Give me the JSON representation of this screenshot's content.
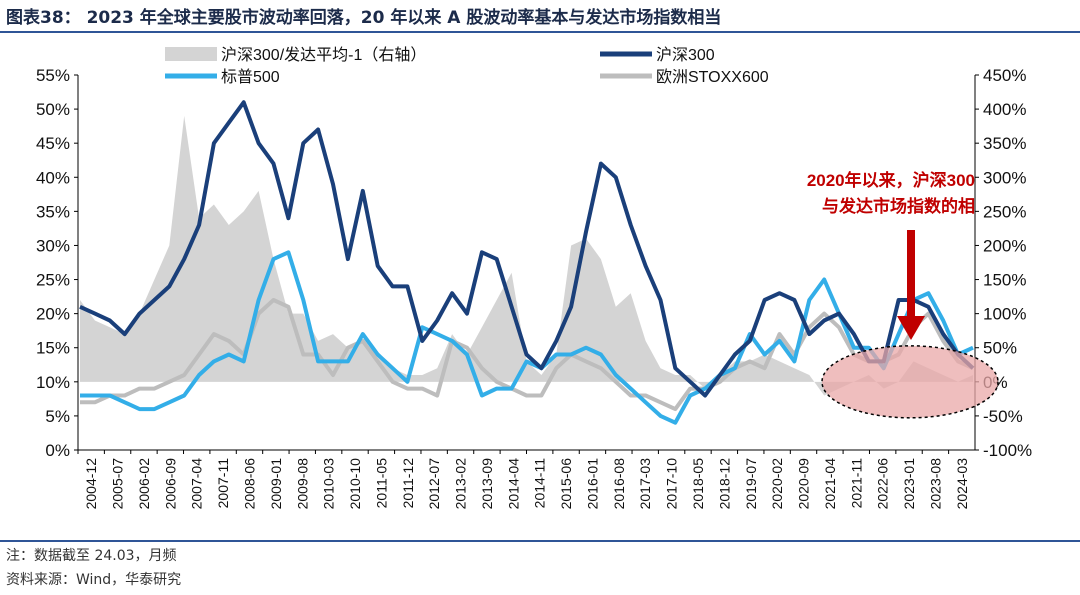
{
  "header": {
    "title": "图表38： 2023 年全球主要股市波动率回落，20 年以来 A 股波动率基本与发达市场指数相当"
  },
  "footer": {
    "note": "注：数据截至 24.03，月频",
    "source": "资料来源：Wind，华泰研究"
  },
  "colors": {
    "area": "#d4d4d4",
    "hs300": "#1a3f7a",
    "sp500": "#33aee8",
    "stoxx": "#bdbdbd",
    "ellipse": "#e9a8a8",
    "arrow": "#c00000",
    "accent_text": "#c00000"
  },
  "chart_data": {
    "type": "line",
    "x_labels": [
      "2004-12",
      "2005-07",
      "2006-02",
      "2006-09",
      "2007-04",
      "2007-11",
      "2008-06",
      "2009-01",
      "2009-08",
      "2010-03",
      "2010-10",
      "2011-05",
      "2011-12",
      "2012-07",
      "2013-02",
      "2013-09",
      "2014-04",
      "2014-11",
      "2015-06",
      "2016-01",
      "2016-08",
      "2017-03",
      "2017-10",
      "2018-05",
      "2018-12",
      "2019-07",
      "2020-02",
      "2020-09",
      "2021-04",
      "2021-11",
      "2022-06",
      "2023-01",
      "2023-08",
      "2024-03"
    ],
    "y_left": {
      "min": 0,
      "max": 55,
      "step": 5,
      "unit": "%",
      "tick_labels": [
        "0%",
        "5%",
        "10%",
        "15%",
        "20%",
        "25%",
        "30%",
        "35%",
        "40%",
        "45%",
        "50%",
        "55%"
      ]
    },
    "y_right": {
      "min": -100,
      "max": 450,
      "step": 50,
      "unit": "%",
      "tick_labels": [
        "-100%",
        "-50%",
        "0%",
        "50%",
        "100%",
        "150%",
        "200%",
        "250%",
        "300%",
        "350%",
        "400%",
        "450%"
      ]
    },
    "legend": [
      {
        "key": "ratio",
        "label": "沪深300/发达平均-1（右轴）"
      },
      {
        "key": "hs300",
        "label": "沪深300"
      },
      {
        "key": "sp500",
        "label": "标普500"
      },
      {
        "key": "stoxx",
        "label": "欧洲STOXX600"
      }
    ],
    "legend_placement": "top",
    "annotation": {
      "lines": [
        "2020年以来，沪深300",
        "与发达市场指数的相"
      ]
    },
    "series": [
      {
        "key": "hs300",
        "axis": "left",
        "values": [
          21,
          20,
          19,
          17,
          20,
          22,
          24,
          28,
          33,
          45,
          48,
          51,
          45,
          42,
          34,
          45,
          47,
          39,
          28,
          38,
          27,
          24,
          24,
          16,
          19,
          23,
          20,
          29,
          28,
          21,
          14,
          12,
          16,
          21,
          32,
          42,
          40,
          33,
          27,
          22,
          12,
          10,
          8,
          11,
          14,
          16,
          22,
          23,
          22,
          17,
          19,
          20,
          17,
          13,
          13,
          22,
          22,
          21,
          17,
          14,
          12
        ]
      },
      {
        "key": "sp500",
        "axis": "left",
        "values": [
          8,
          8,
          8,
          7,
          6,
          6,
          7,
          8,
          11,
          13,
          14,
          13,
          22,
          28,
          29,
          22,
          13,
          13,
          13,
          17,
          14,
          12,
          10,
          18,
          17,
          16,
          14,
          8,
          9,
          9,
          13,
          12,
          14,
          14,
          15,
          14,
          11,
          9,
          7,
          5,
          4,
          8,
          9,
          11,
          12,
          17,
          14,
          16,
          13,
          22,
          25,
          20,
          15,
          15,
          12,
          17,
          22,
          23,
          19,
          14,
          15
        ]
      },
      {
        "key": "stoxx",
        "axis": "left",
        "values": [
          7,
          7,
          8,
          8,
          9,
          9,
          10,
          11,
          14,
          17,
          16,
          14,
          20,
          22,
          21,
          14,
          14,
          11,
          15,
          16,
          13,
          10,
          9,
          9,
          8,
          16,
          15,
          12,
          10,
          9,
          8,
          8,
          12,
          14,
          13,
          12,
          10,
          8,
          8,
          7,
          6,
          9,
          9,
          10,
          12,
          13,
          12,
          17,
          14,
          18,
          20,
          18,
          14,
          13,
          13,
          14,
          18,
          20,
          16,
          13,
          12
        ]
      },
      {
        "key": "ratio",
        "axis": "right",
        "values": [
          120,
          90,
          80,
          70,
          100,
          150,
          200,
          390,
          240,
          260,
          230,
          250,
          280,
          180,
          100,
          100,
          60,
          70,
          50,
          60,
          40,
          20,
          10,
          10,
          20,
          70,
          40,
          80,
          120,
          160,
          30,
          10,
          40,
          200,
          210,
          180,
          110,
          130,
          60,
          20,
          10,
          10,
          -10,
          10,
          30,
          30,
          40,
          30,
          20,
          10,
          -20,
          -10,
          0,
          10,
          -10,
          0,
          30,
          20,
          10,
          0,
          10
        ]
      }
    ]
  }
}
